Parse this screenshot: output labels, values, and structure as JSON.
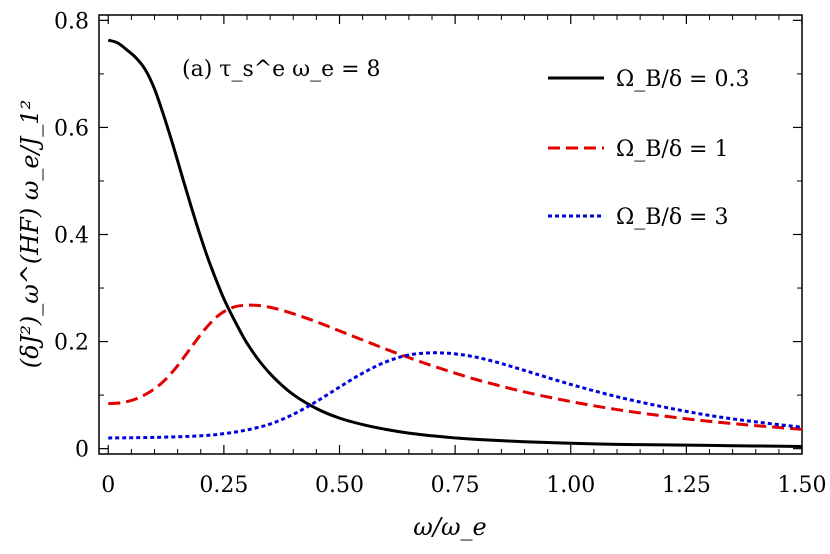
{
  "chart_data": {
    "type": "line",
    "annotation": "(a) τ_s^e ω_e = 8",
    "xlabel": "ω/ω_e",
    "ylabel": "(δJ²)_ω^(HF) ω_e/J_1²",
    "xlim": [
      -0.02,
      1.5
    ],
    "ylim": [
      -0.01,
      0.81
    ],
    "xticks": [
      0,
      0.25,
      0.5,
      0.75,
      1.0,
      1.25,
      1.5
    ],
    "xtick_labels": [
      "0",
      "0.25",
      "0.50",
      "0.75",
      "1.00",
      "1.25",
      "1.50"
    ],
    "yticks": [
      0,
      0.2,
      0.4,
      0.6,
      0.8
    ],
    "ytick_labels": [
      "0",
      "0.2",
      "0.4",
      "0.6",
      "0.8"
    ],
    "grid": false,
    "legend_position": "top-right",
    "series": [
      {
        "name": "Ω_B/δ = 0.3",
        "color": "#000000",
        "style": "solid",
        "x": [
          0.0,
          0.02,
          0.04,
          0.06,
          0.08,
          0.1,
          0.12,
          0.14,
          0.16,
          0.18,
          0.2,
          0.22,
          0.25,
          0.28,
          0.3,
          0.33,
          0.36,
          0.4,
          0.45,
          0.5,
          0.55,
          0.6,
          0.65,
          0.7,
          0.75,
          0.8,
          0.9,
          1.0,
          1.1,
          1.2,
          1.3,
          1.4,
          1.5
        ],
        "values": [
          0.763,
          0.758,
          0.745,
          0.73,
          0.708,
          0.672,
          0.622,
          0.567,
          0.508,
          0.45,
          0.395,
          0.345,
          0.28,
          0.228,
          0.197,
          0.16,
          0.131,
          0.101,
          0.075,
          0.057,
          0.045,
          0.036,
          0.029,
          0.024,
          0.02,
          0.017,
          0.013,
          0.01,
          0.008,
          0.007,
          0.006,
          0.005,
          0.004
        ]
      },
      {
        "name": "Ω_B/δ = 1",
        "color": "#e00000",
        "style": "dashed",
        "x": [
          0.0,
          0.03,
          0.06,
          0.09,
          0.12,
          0.15,
          0.18,
          0.21,
          0.24,
          0.27,
          0.3,
          0.33,
          0.36,
          0.4,
          0.45,
          0.5,
          0.55,
          0.6,
          0.65,
          0.7,
          0.75,
          0.8,
          0.9,
          1.0,
          1.1,
          1.2,
          1.3,
          1.4,
          1.5
        ],
        "values": [
          0.084,
          0.086,
          0.093,
          0.106,
          0.126,
          0.155,
          0.19,
          0.224,
          0.25,
          0.264,
          0.268,
          0.267,
          0.262,
          0.252,
          0.237,
          0.22,
          0.203,
          0.186,
          0.17,
          0.155,
          0.141,
          0.128,
          0.106,
          0.088,
          0.073,
          0.061,
          0.051,
          0.043,
          0.036
        ]
      },
      {
        "name": "Ω_B/δ = 3",
        "color": "#0000dd",
        "style": "dotted",
        "x": [
          0.0,
          0.1,
          0.2,
          0.25,
          0.3,
          0.35,
          0.4,
          0.45,
          0.5,
          0.55,
          0.6,
          0.65,
          0.7,
          0.75,
          0.8,
          0.85,
          0.9,
          1.0,
          1.1,
          1.2,
          1.3,
          1.4,
          1.5
        ],
        "values": [
          0.02,
          0.021,
          0.024,
          0.028,
          0.035,
          0.046,
          0.064,
          0.088,
          0.115,
          0.141,
          0.162,
          0.175,
          0.179,
          0.177,
          0.17,
          0.159,
          0.146,
          0.12,
          0.097,
          0.078,
          0.062,
          0.05,
          0.04
        ]
      }
    ]
  }
}
